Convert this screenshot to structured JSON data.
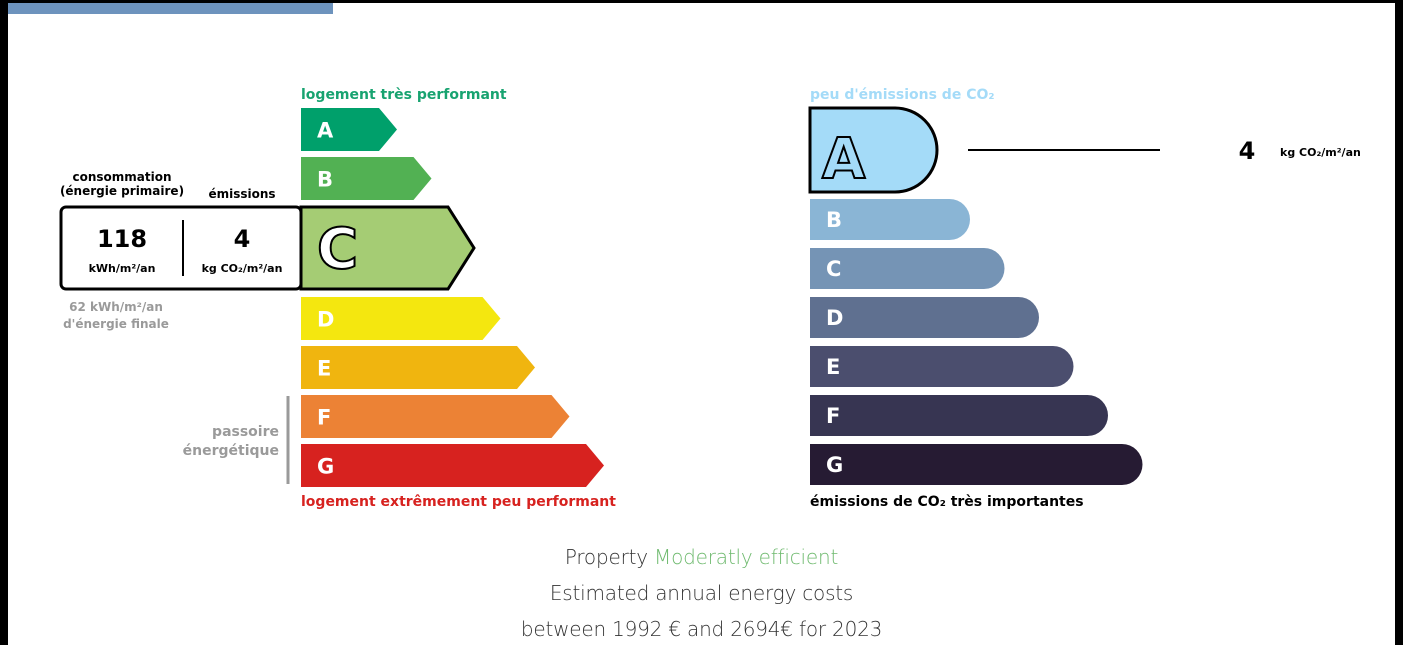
{
  "energy": {
    "header": "logement très performant",
    "footer": "logement extrêmement peu performant",
    "current_class": "C",
    "classes": [
      {
        "letter": "A",
        "color": "#00a06b"
      },
      {
        "letter": "B",
        "color": "#52b153"
      },
      {
        "letter": "C",
        "color": "#a5cc74"
      },
      {
        "letter": "D",
        "color": "#f4e70f"
      },
      {
        "letter": "E",
        "color": "#f0b50f"
      },
      {
        "letter": "F",
        "color": "#ec8235"
      },
      {
        "letter": "G",
        "color": "#d7221f"
      }
    ],
    "consumption_label_1": "consommation",
    "consumption_label_2": "(énergie primaire)",
    "emissions_label": "émissions",
    "consumption_value": "118",
    "consumption_unit": "kWh/m²/an",
    "emissions_value": "4",
    "emissions_unit": "kg CO₂/m²/an",
    "final_energy_1": "62 kWh/m²/an",
    "final_energy_2": "d'énergie finale",
    "passoire_1": "passoire",
    "passoire_2": "énergétique"
  },
  "climate": {
    "header": "peu d'émissions de CO₂",
    "footer": "émissions de CO₂ très importantes",
    "current_class": "A",
    "value": "4",
    "unit": "kg CO₂/m²/an",
    "classes": [
      {
        "letter": "A",
        "color": "#a4dbf8"
      },
      {
        "letter": "B",
        "color": "#8ab5d5"
      },
      {
        "letter": "C",
        "color": "#7594b5"
      },
      {
        "letter": "D",
        "color": "#5f7090"
      },
      {
        "letter": "E",
        "color": "#4b4e6e"
      },
      {
        "letter": "F",
        "color": "#373552"
      },
      {
        "letter": "G",
        "color": "#261b33"
      }
    ]
  },
  "caption": {
    "line1_prefix": "Property",
    "line1_accent": "Moderatly efficient",
    "line2": "Estimated annual energy costs",
    "line3": "between 1992 € and 2694€ for 2023"
  },
  "colors": {
    "header_green": "#18a370",
    "footer_red": "#d7221f",
    "grey_text": "#9a9a9a",
    "climate_header": "#a4dbf8",
    "corner_tab": "#6d93bd"
  }
}
